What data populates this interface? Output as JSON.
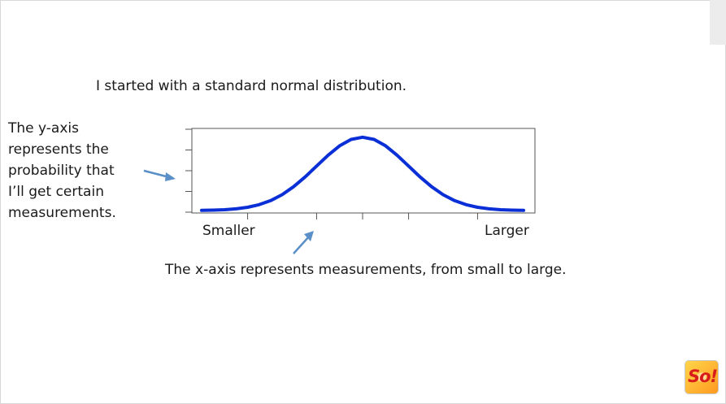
{
  "slide": {
    "title": "I started with a standard normal distribution.",
    "y_note_lines": [
      "The y-axis",
      "represents the",
      "probability that",
      "I’ll get certain",
      "measurements."
    ],
    "x_note": "The x-axis represents measurements, from small to large."
  },
  "logo": {
    "icon": "so-logo-icon",
    "text": "So!"
  },
  "colors": {
    "curve": "#0a2fd6",
    "arrow": "#5b8fc7",
    "axis": "#555555"
  },
  "chart_data": {
    "type": "line",
    "title": "",
    "xlabel": "",
    "ylabel": "",
    "x_tick_labels": [
      "Smaller",
      "Larger"
    ],
    "x_range": [
      -3.5,
      3.5
    ],
    "y_range": [
      0,
      0.42
    ],
    "x_ticks": [
      -2.5,
      -1,
      0,
      1,
      2.5
    ],
    "y_tick_count": 5,
    "grid": false,
    "legend": "none",
    "series": [
      {
        "x": [
          -3.5,
          -3.25,
          -3,
          -2.75,
          -2.5,
          -2.25,
          -2,
          -1.75,
          -1.5,
          -1.25,
          -1,
          -0.75,
          -0.5,
          -0.25,
          0,
          0.25,
          0.5,
          0.75,
          1,
          1.25,
          1.5,
          1.75,
          2,
          2.25,
          2.5,
          2.75,
          3,
          3.25,
          3.5
        ],
        "y": [
          0.0009,
          0.002,
          0.0044,
          0.0091,
          0.0175,
          0.0317,
          0.054,
          0.0863,
          0.1295,
          0.1826,
          0.242,
          0.3011,
          0.3521,
          0.3867,
          0.3989,
          0.3867,
          0.3521,
          0.3011,
          0.242,
          0.1826,
          0.1295,
          0.0863,
          0.054,
          0.0317,
          0.0175,
          0.0091,
          0.0044,
          0.002,
          0.0009
        ]
      }
    ]
  }
}
